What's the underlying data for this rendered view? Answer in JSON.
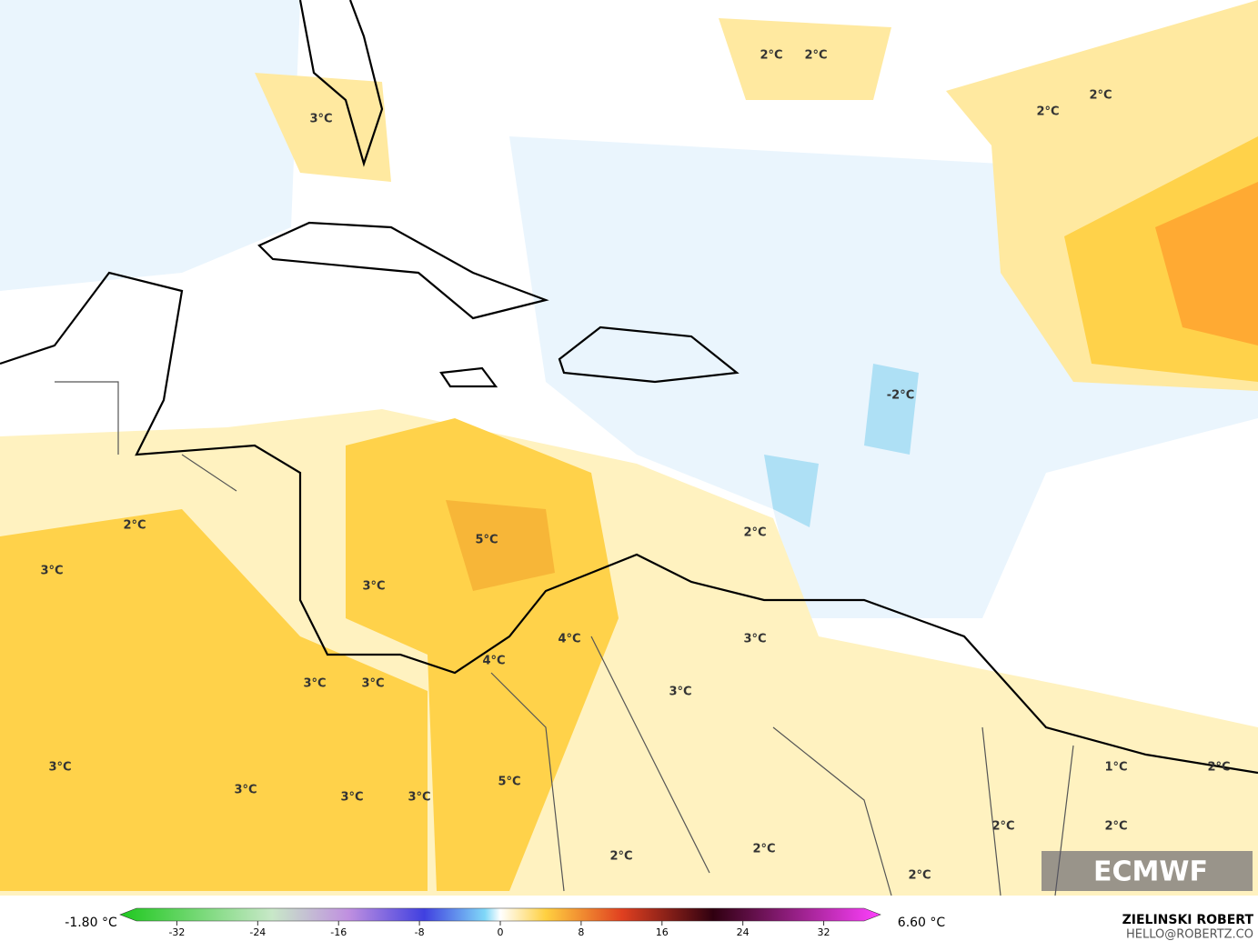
{
  "map": {
    "contour_labels": [
      "2°C",
      "2°C",
      "2°C",
      "2°C",
      "3°C",
      "-2°C",
      "5°C",
      "2°C",
      "3°C",
      "3°C",
      "2°C",
      "4°C",
      "3°C",
      "4°C",
      "3°C",
      "3°C",
      "3°C",
      "3°C",
      "1°C",
      "2°C",
      "5°C",
      "3°C",
      "3°C",
      "3°C",
      "2°C",
      "2°C",
      "2°C",
      "2°C",
      "2°C"
    ],
    "logo": "ECMWF"
  },
  "colorbar": {
    "min_label": "-1.80 °C",
    "max_label": "6.60 °C",
    "range": [
      -36,
      36
    ],
    "ticks": [
      -32,
      -24,
      -16,
      -8,
      0,
      8,
      16,
      24,
      32
    ]
  },
  "credits": {
    "author": "ZIELINSKI ROBERT",
    "email": "HELLO@ROBERTZ.CO"
  }
}
